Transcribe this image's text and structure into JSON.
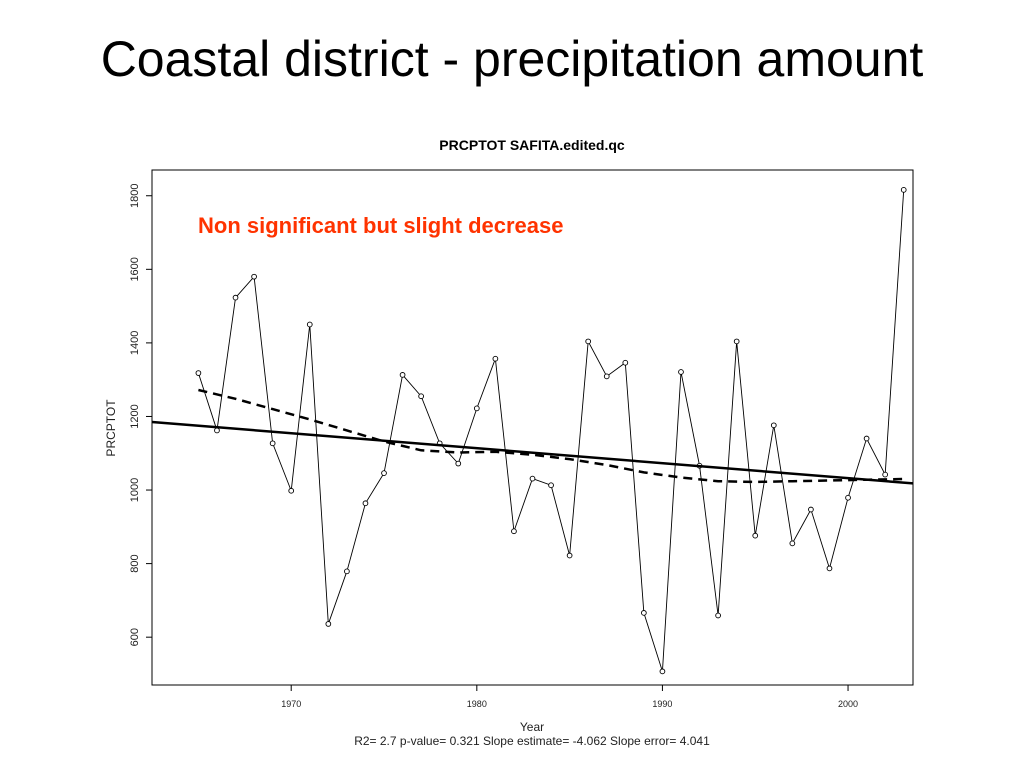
{
  "slide": {
    "title": "Coastal district - precipitation amount"
  },
  "colors": {
    "annotation": "#ff3300",
    "ink": "#000000"
  },
  "chart_data": {
    "type": "line",
    "title": "PRCPTOT   SAFITA.edited.qc",
    "xlabel": "Year",
    "ylabel": "PRCPTOT",
    "stats_line": "R2= 2.7  p-value= 0.321  Slope estimate= -4.062  Slope error= 4.041",
    "annotation": "Non significant but slight decrease",
    "xlim": [
      1962.5,
      2003.5
    ],
    "ylim": [
      470,
      1870
    ],
    "x_ticks": [
      1970,
      1980,
      1990,
      2000
    ],
    "y_ticks": [
      600,
      800,
      1000,
      1200,
      1400,
      1600,
      1800
    ],
    "grid": false,
    "x": [
      1965,
      1966,
      1967,
      1968,
      1969,
      1970,
      1971,
      1972,
      1973,
      1974,
      1975,
      1976,
      1977,
      1978,
      1979,
      1980,
      1981,
      1982,
      1983,
      1984,
      1985,
      1986,
      1987,
      1988,
      1989,
      1990,
      1991,
      1992,
      1993,
      1994,
      1995,
      1996,
      1997,
      1998,
      1999,
      2000,
      2001,
      2002,
      2003
    ],
    "series": [
      {
        "style": "line-points",
        "values": [
          1318,
          1162,
          1523,
          1580,
          1127,
          998,
          1450,
          636,
          779,
          964,
          1046,
          1313,
          1255,
          1127,
          1072,
          1222,
          1357,
          888,
          1031,
          1013,
          822,
          1404,
          1309,
          1346,
          666,
          507,
          1321,
          1066,
          659,
          1404,
          876,
          1176,
          855,
          947,
          787,
          979,
          1140,
          1042,
          1816
        ]
      },
      {
        "style": "solid-trend",
        "endpoints_x": [
          1962.5,
          2003.5
        ],
        "endpoints_y": [
          1185,
          1018
        ]
      },
      {
        "style": "dashed-smooth",
        "x": [
          1965,
          1967,
          1969,
          1971,
          1973,
          1975,
          1977,
          1979,
          1981,
          1983,
          1985,
          1987,
          1989,
          1991,
          1993,
          1995,
          1997,
          1999,
          2001,
          2003
        ],
        "values": [
          1272,
          1248,
          1220,
          1192,
          1162,
          1132,
          1108,
          1102,
          1104,
          1096,
          1084,
          1068,
          1048,
          1034,
          1024,
          1022,
          1024,
          1026,
          1028,
          1030
        ]
      }
    ]
  }
}
